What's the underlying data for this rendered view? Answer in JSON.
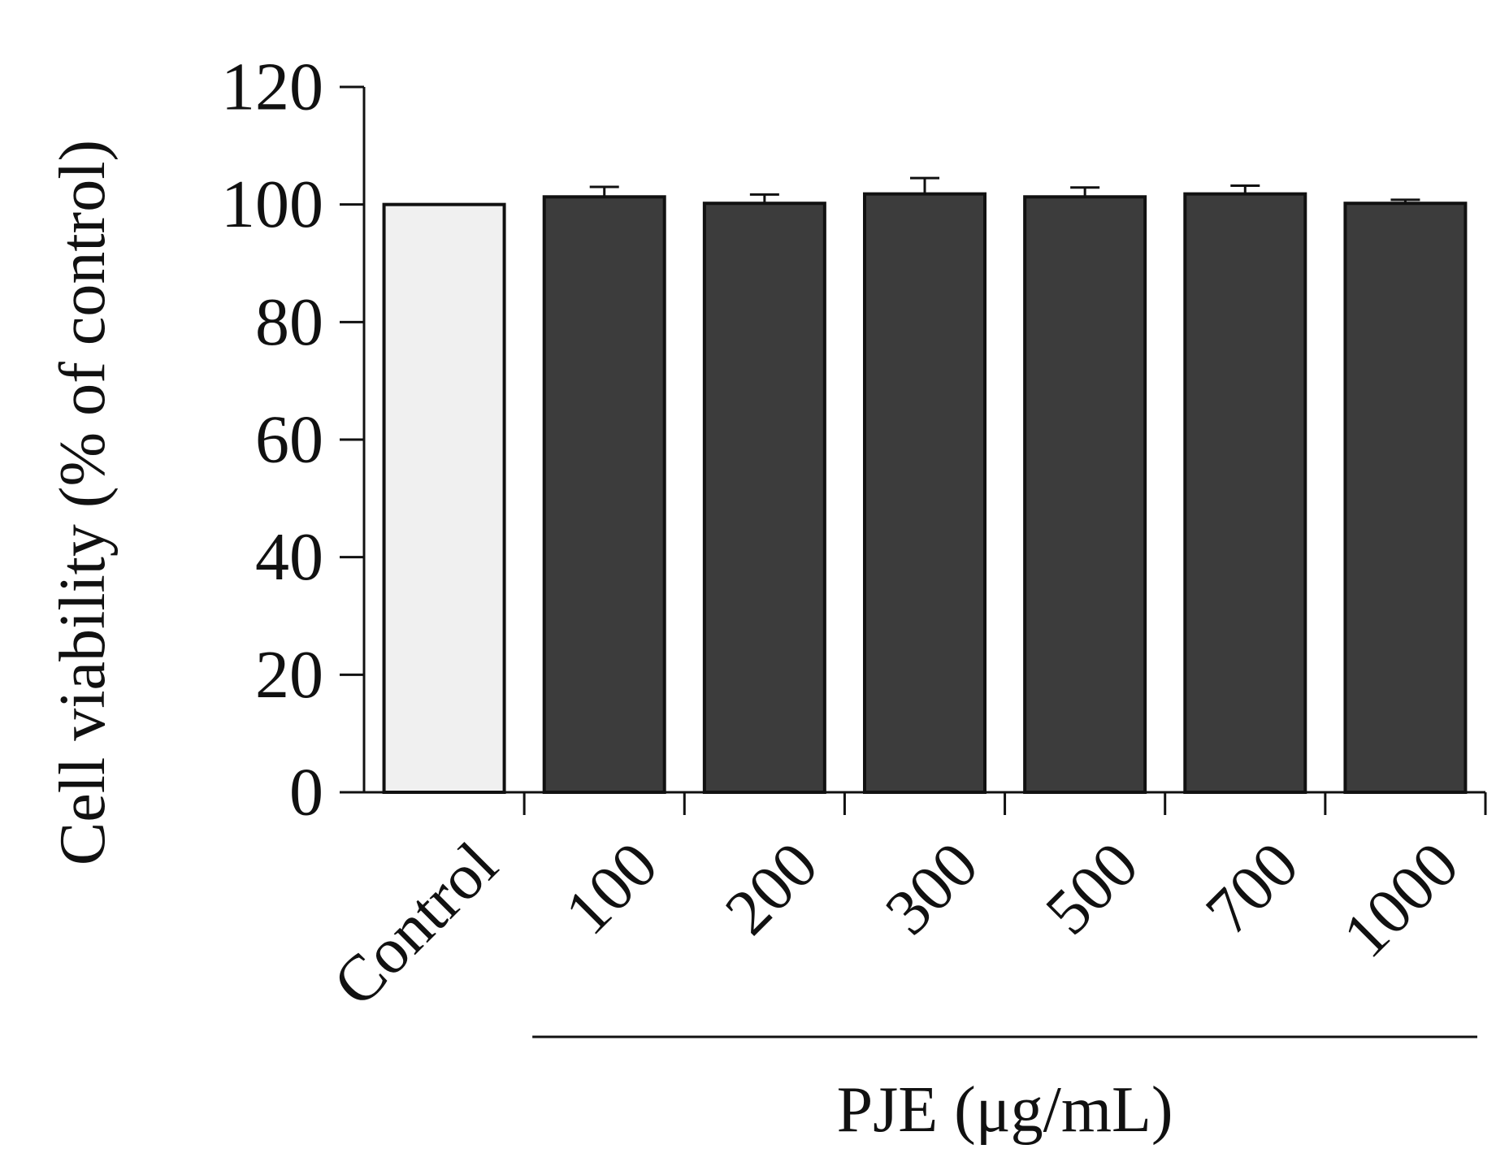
{
  "chart_data": {
    "type": "bar",
    "ylabel": "Cell viability (% of control)",
    "xlabel": "",
    "group_label": "PJE (μg/mL)",
    "categories": [
      "Control",
      "100",
      "200",
      "300",
      "500",
      "700",
      "1000"
    ],
    "values": [
      100,
      101.3,
      100.2,
      101.8,
      101.3,
      101.8,
      100.2
    ],
    "errors": [
      0,
      1.7,
      1.5,
      2.7,
      1.6,
      1.4,
      0.6
    ],
    "bar_colors": [
      "#f0f0f0",
      "#3c3c3c",
      "#3c3c3c",
      "#3c3c3c",
      "#3c3c3c",
      "#3c3c3c",
      "#3c3c3c"
    ],
    "ylim": [
      0,
      120
    ],
    "yticks": [
      0,
      20,
      40,
      60,
      80,
      100,
      120
    ],
    "ytick_labels": [
      "0",
      "20",
      "40",
      "60",
      "80",
      "100",
      "120"
    ],
    "grid": false,
    "legend": "none"
  }
}
